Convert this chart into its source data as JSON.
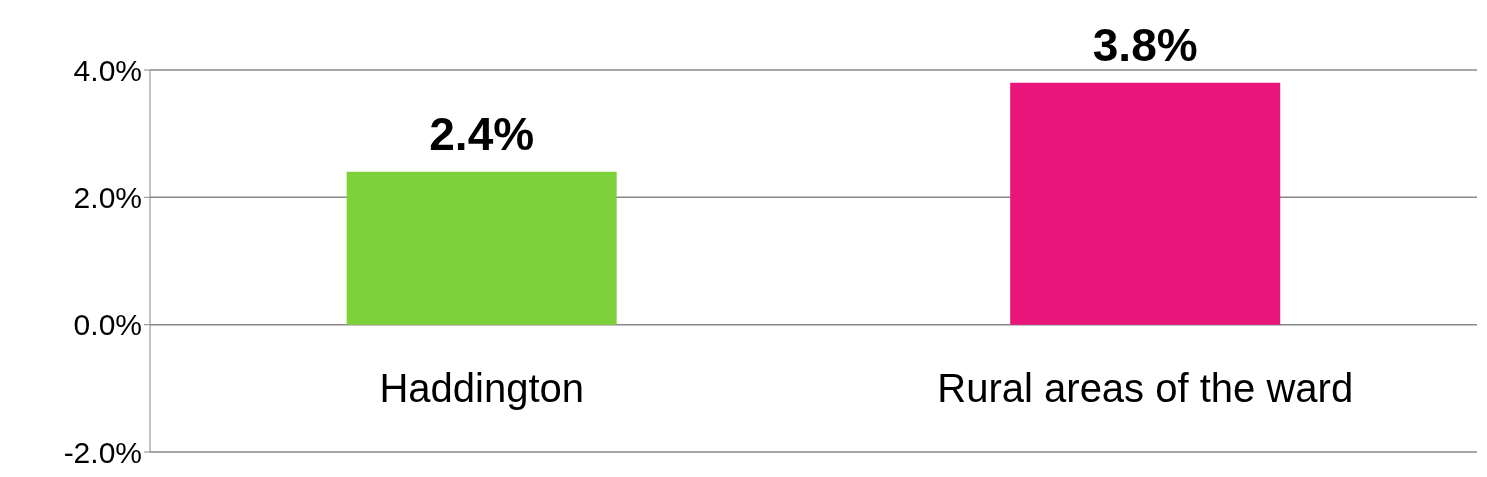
{
  "chart_data": {
    "type": "bar",
    "categories": [
      "Haddington",
      "Rural areas of the ward"
    ],
    "values": [
      2.4,
      3.8
    ],
    "colors": [
      "#7fd13b",
      "#ea157a"
    ],
    "value_labels": [
      "2.4%",
      "3.8%"
    ],
    "ylim": [
      -2,
      4
    ],
    "yticks": [
      {
        "value": -2,
        "label": "-2.0%"
      },
      {
        "value": 0,
        "label": "0.0%"
      },
      {
        "value": 2,
        "label": "2.0%"
      },
      {
        "value": 4,
        "label": "4.0%"
      }
    ],
    "grid": "y"
  }
}
